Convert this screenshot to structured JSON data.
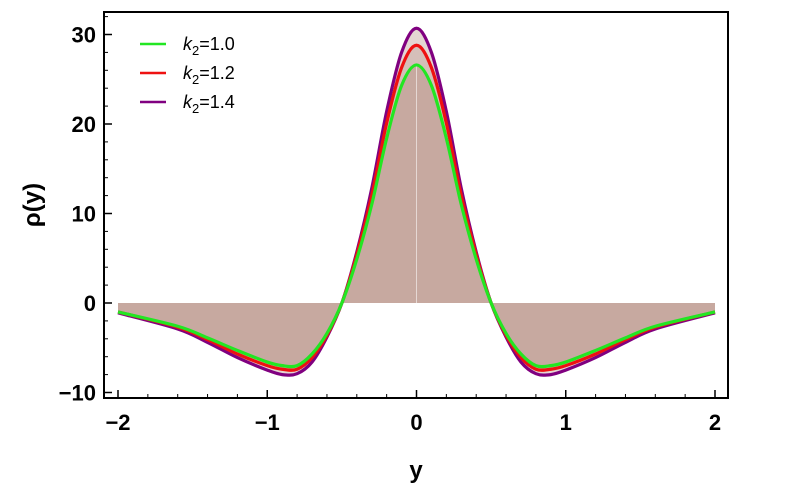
{
  "chart_data": {
    "type": "line",
    "xlabel": "y",
    "ylabel": "ρ(y)",
    "xlim": [
      -2,
      2
    ],
    "ylim": [
      -10,
      33
    ],
    "x_ticks": [
      -2,
      -1,
      0,
      1,
      2
    ],
    "x_tick_labels": [
      "−2",
      "−1",
      "0",
      "1",
      "2"
    ],
    "y_ticks": [
      -10,
      0,
      10,
      20,
      30
    ],
    "y_tick_labels": [
      "−10",
      "0",
      "10",
      "20",
      "30"
    ],
    "grid": false,
    "legend_position": "top-left",
    "filled_to_zero": true,
    "fill_color": "#c4a59b",
    "series": [
      {
        "name": "k2=1.0",
        "label_base": "k",
        "label_sub": "2",
        "label_rest": "=1.0",
        "color": "#22e622",
        "x": [
          -2.0,
          -1.6,
          -1.4,
          -1.2,
          -1.0,
          -0.9,
          -0.8,
          -0.7,
          -0.6,
          -0.5,
          -0.4,
          -0.3,
          -0.2,
          -0.1,
          0.0,
          0.1,
          0.2,
          0.3,
          0.4,
          0.5,
          0.6,
          0.7,
          0.8,
          0.9,
          1.0,
          1.2,
          1.4,
          1.6,
          2.0
        ],
        "y": [
          -1.0,
          -2.6,
          -3.9,
          -5.3,
          -6.6,
          -7.0,
          -7.0,
          -5.7,
          -3.4,
          0.0,
          4.9,
          11.0,
          18.4,
          24.3,
          26.6,
          24.3,
          18.4,
          11.0,
          4.9,
          0.0,
          -3.4,
          -5.7,
          -7.0,
          -7.0,
          -6.6,
          -5.3,
          -3.9,
          -2.6,
          -1.0
        ]
      },
      {
        "name": "k2=1.2",
        "label_base": "k",
        "label_sub": "2",
        "label_rest": "=1.2",
        "color": "#ee1111",
        "x": [
          -2.0,
          -1.6,
          -1.4,
          -1.2,
          -1.0,
          -0.9,
          -0.8,
          -0.7,
          -0.6,
          -0.5,
          -0.4,
          -0.3,
          -0.2,
          -0.1,
          0.0,
          0.1,
          0.2,
          0.3,
          0.4,
          0.5,
          0.6,
          0.7,
          0.8,
          0.9,
          1.0,
          1.2,
          1.4,
          1.6,
          2.0
        ],
        "y": [
          -1.0,
          -2.7,
          -4.1,
          -5.7,
          -7.0,
          -7.4,
          -7.4,
          -6.1,
          -3.6,
          0.0,
          5.4,
          12.0,
          20.1,
          26.3,
          28.8,
          26.3,
          20.1,
          12.0,
          5.4,
          0.0,
          -3.6,
          -6.1,
          -7.4,
          -7.4,
          -7.0,
          -5.7,
          -4.1,
          -2.7,
          -1.0
        ]
      },
      {
        "name": "k2=1.4",
        "label_base": "k",
        "label_sub": "2",
        "label_rest": "=1.4",
        "color": "#800080",
        "x": [
          -2.0,
          -1.6,
          -1.4,
          -1.2,
          -1.0,
          -0.9,
          -0.8,
          -0.7,
          -0.6,
          -0.5,
          -0.4,
          -0.3,
          -0.2,
          -0.1,
          0.0,
          0.1,
          0.2,
          0.3,
          0.4,
          0.5,
          0.6,
          0.7,
          0.8,
          0.9,
          1.0,
          1.2,
          1.4,
          1.6,
          2.0
        ],
        "y": [
          -1.1,
          -2.9,
          -4.4,
          -6.1,
          -7.5,
          -8.0,
          -7.9,
          -6.6,
          -3.8,
          0.0,
          5.7,
          12.8,
          21.4,
          28.0,
          30.7,
          28.0,
          21.4,
          12.8,
          5.7,
          0.0,
          -3.8,
          -6.6,
          -7.9,
          -8.0,
          -7.5,
          -6.1,
          -4.4,
          -2.9,
          -1.1
        ]
      }
    ]
  }
}
